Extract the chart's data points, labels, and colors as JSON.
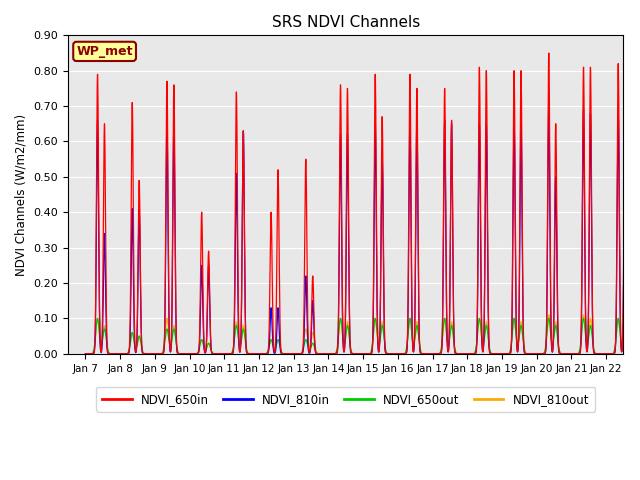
{
  "title": "SRS NDVI Channels",
  "ylabel": "NDVI Channels (W/m2/mm)",
  "xlabel": "",
  "ylim": [
    0.0,
    0.9
  ],
  "xtick_labels": [
    "Jan 7",
    "Jan 8",
    "Jan 9",
    "Jan 10",
    "Jan 11",
    "Jan 12",
    "Jan 13",
    "Jan 14",
    "Jan 15",
    "Jan 16",
    "Jan 17",
    "Jan 18",
    "Jan 19",
    "Jan 20",
    "Jan 21",
    "Jan 22"
  ],
  "ytick_vals": [
    0.0,
    0.1,
    0.2,
    0.3,
    0.4,
    0.5,
    0.6,
    0.7,
    0.8,
    0.9
  ],
  "site_label": "WP_met",
  "colors": {
    "NDVI_650in": "#FF0000",
    "NDVI_810in": "#0000FF",
    "NDVI_650out": "#00CC00",
    "NDVI_810out": "#FFAA00"
  },
  "bg_color": "#E8E8E8",
  "spike1_650in": [
    0.79,
    0.71,
    0.77,
    0.4,
    0.74,
    0.4,
    0.55,
    0.76,
    0.79,
    0.79,
    0.75,
    0.81,
    0.8,
    0.85,
    0.81,
    0.82
  ],
  "spike2_650in": [
    0.65,
    0.49,
    0.76,
    0.29,
    0.63,
    0.52,
    0.22,
    0.75,
    0.67,
    0.75,
    0.66,
    0.8,
    0.8,
    0.65,
    0.81,
    0.8
  ],
  "spike1_810in": [
    0.66,
    0.41,
    0.64,
    0.25,
    0.51,
    0.13,
    0.22,
    0.62,
    0.65,
    0.65,
    0.66,
    0.65,
    0.66,
    0.7,
    0.69,
    0.68
  ],
  "spike2_810in": [
    0.34,
    0.41,
    0.64,
    0.25,
    0.63,
    0.13,
    0.15,
    0.62,
    0.56,
    0.65,
    0.65,
    0.65,
    0.65,
    0.5,
    0.68,
    0.68
  ],
  "spike1_650out": [
    0.1,
    0.06,
    0.07,
    0.04,
    0.08,
    0.04,
    0.04,
    0.1,
    0.1,
    0.1,
    0.1,
    0.1,
    0.1,
    0.1,
    0.1,
    0.1
  ],
  "spike2_650out": [
    0.07,
    0.05,
    0.07,
    0.03,
    0.07,
    0.04,
    0.03,
    0.08,
    0.08,
    0.08,
    0.08,
    0.08,
    0.08,
    0.08,
    0.08,
    0.08
  ],
  "spike1_810out": [
    0.1,
    0.06,
    0.1,
    0.04,
    0.09,
    0.04,
    0.07,
    0.1,
    0.1,
    0.1,
    0.1,
    0.1,
    0.1,
    0.11,
    0.11,
    0.1
  ],
  "spike2_810out": [
    0.08,
    0.05,
    0.08,
    0.03,
    0.08,
    0.04,
    0.06,
    0.09,
    0.09,
    0.09,
    0.09,
    0.09,
    0.09,
    0.09,
    0.1,
    0.09
  ],
  "legend_labels": [
    "NDVI_650in",
    "NDVI_810in",
    "NDVI_650out",
    "NDVI_810out"
  ]
}
